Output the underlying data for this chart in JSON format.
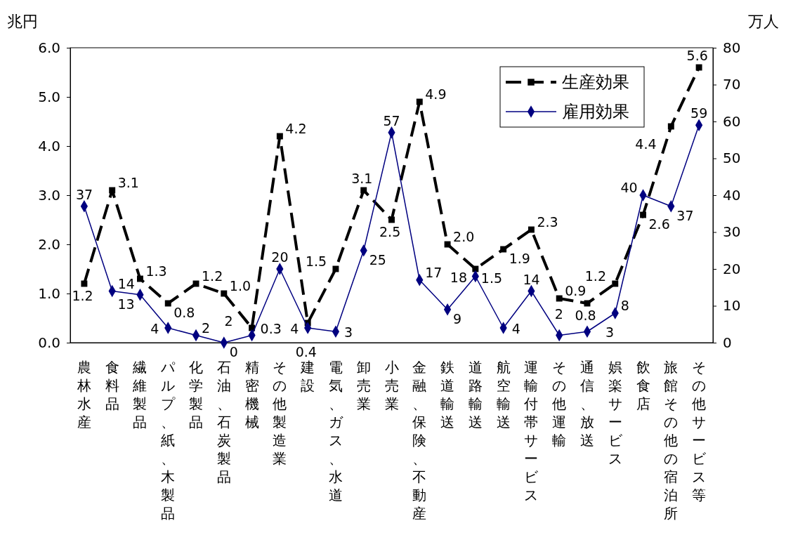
{
  "chart_data": {
    "type": "line",
    "ylabel": "兆円",
    "y2label": "万人",
    "categories": [
      "農林水産",
      "食料品",
      "繊維製品",
      "パルプ、紙、木製品",
      "化学製品",
      "石油、石炭製品",
      "精密機械",
      "その他製造業",
      "建設",
      "電気、ガス、水道",
      "卸売業",
      "小売業",
      "金融、保険、不動産",
      "鉄道輸送",
      "道路輸送",
      "航空輸送",
      "運輸付帯サービス",
      "その他運輸",
      "通信、放送",
      "娯楽サービス",
      "飲食店",
      "旅館その他の宿泊所",
      "その他サービス等"
    ],
    "series": [
      {
        "name": "生産効果",
        "color": "#000000",
        "line_style": "dashed",
        "marker": "square",
        "values": [
          1.2,
          3.1,
          1.3,
          0.8,
          1.2,
          1.0,
          0.3,
          4.2,
          0.4,
          1.5,
          3.1,
          2.5,
          4.9,
          2.0,
          1.5,
          1.9,
          2.3,
          0.9,
          0.8,
          1.2,
          2.6,
          4.4,
          5.6
        ],
        "value_labels": [
          "1.2",
          "3.1",
          "1.3",
          "0.8",
          "1.2",
          "1.0",
          "0.3",
          "4.2",
          "0.4",
          "1.5",
          "3.1",
          "2.5",
          "4.9",
          "2.0",
          "1.5",
          "1.9",
          "2.3",
          "0.9",
          "0.8",
          "1.2",
          "2.6",
          "4.4",
          "5.6"
        ]
      },
      {
        "name": "雇用効果",
        "color": "#000080",
        "line_style": "solid",
        "marker": "diamond",
        "axis": "y2",
        "values": [
          37,
          14,
          13,
          4,
          2,
          0,
          2,
          20,
          4,
          3,
          25,
          57,
          17,
          9,
          18,
          4,
          14,
          2,
          3,
          8,
          40,
          37,
          59
        ],
        "value_labels": [
          "37",
          "14",
          "13",
          "4",
          "2",
          "0",
          "2",
          "20",
          "4",
          "3",
          "25",
          "57",
          "17",
          "9",
          "18",
          "4",
          "14",
          "2",
          "3",
          "8",
          "40",
          "37",
          "59"
        ]
      }
    ],
    "ylim": [
      0,
      6
    ],
    "yticks": [
      {
        "value": 0,
        "label": "0.0"
      },
      {
        "value": 1,
        "label": "1.0"
      },
      {
        "value": 2,
        "label": "2.0"
      },
      {
        "value": 3,
        "label": "3.0"
      },
      {
        "value": 4,
        "label": "4.0"
      },
      {
        "value": 5,
        "label": "5.0"
      },
      {
        "value": 6,
        "label": "6.0"
      }
    ],
    "y2lim": [
      0,
      80
    ],
    "y2ticks": [
      0,
      10,
      20,
      30,
      40,
      50,
      60,
      70,
      80
    ],
    "grid": false,
    "legend": "top right"
  }
}
